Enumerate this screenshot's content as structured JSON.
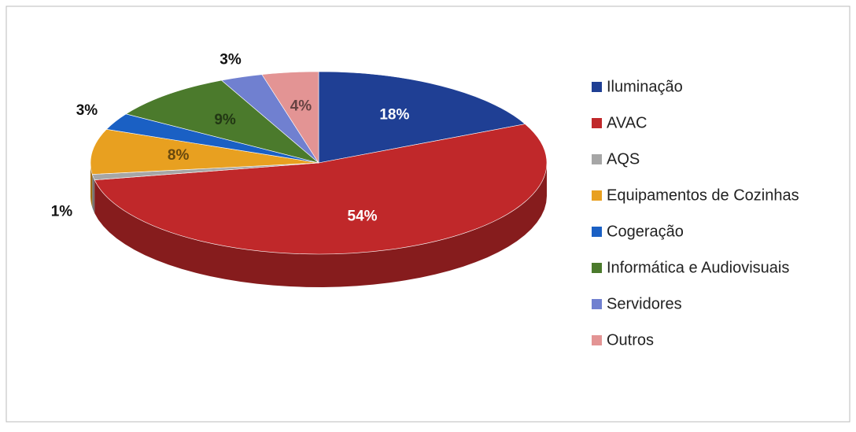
{
  "chart_data": {
    "type": "pie",
    "categories": [
      "Iluminação",
      "AVAC",
      "AQS",
      "Equipamentos de Cozinhas",
      "Cogeração",
      "Informática e Audiovisuais",
      "Servidores",
      "Outros"
    ],
    "values": [
      18,
      54,
      1,
      8,
      3,
      9,
      3,
      4
    ],
    "value_labels": [
      "18%",
      "54%",
      "1%",
      "8%",
      "3%",
      "9%",
      "3%",
      "4%"
    ],
    "colors": [
      "#1f3f94",
      "#c0282a",
      "#a6a6a6",
      "#e8a020",
      "#1a60c4",
      "#4b7a2c",
      "#7080d0",
      "#e39494"
    ],
    "legend": "right"
  }
}
